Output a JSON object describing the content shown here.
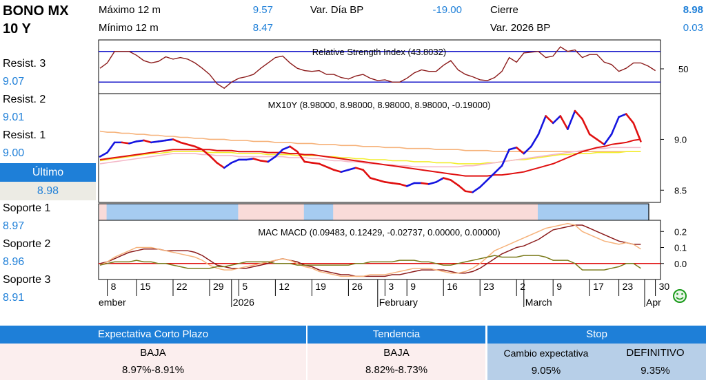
{
  "header": {
    "title_line1": "BONO MX",
    "title_line2": "10 Y",
    "max12_label": "Máximo 12 m",
    "max12_value": "9.57",
    "min12_label": "Mínimo 12 m",
    "min12_value": "8.47",
    "var_dia_label": "Var. Día BP",
    "var_dia_value": "-19.00",
    "cierre_label": "Cierre",
    "cierre_value": "8.98",
    "var_2026_label": "Var. 2026 BP",
    "var_2026_value": "0.03"
  },
  "levels": {
    "r3_label": "Resist. 3",
    "r3_value": "9.07",
    "r2_label": "Resist. 2",
    "r2_value": "9.01",
    "r1_label": "Resist. 1",
    "r1_value": "9.00",
    "ultimo_label": "Último",
    "ultimo_value": "8.98",
    "s1_label": "Soporte 1",
    "s1_value": "8.97",
    "s2_label": "Soporte 2",
    "s2_value": "8.96",
    "s3_label": "Soporte 3",
    "s3_value": "8.91"
  },
  "colors": {
    "accent": "#1e7fd8",
    "price_up": "#1515e0",
    "price_down": "#e01010",
    "rsi_line": "#8b1a1a",
    "band_blue": "#a6ccf1",
    "band_pink": "#f9dbd9",
    "ma_orange": "#f6b27a",
    "ma_yellow": "#f2ee2e",
    "ma_pink": "#f4b8c8",
    "ma_red": "#e01010"
  },
  "chart_data": [
    {
      "type": "line",
      "title": "Relative Strength Index (43.8032)",
      "ylim": [
        15,
        85
      ],
      "y_ticks": [
        "50"
      ],
      "reference_lines": [
        70,
        30
      ],
      "series": [
        {
          "values": [
            48,
            55,
            70,
            70,
            70,
            65,
            58,
            55,
            57,
            63,
            60,
            62,
            60,
            55,
            48,
            40,
            28,
            22,
            30,
            35,
            37,
            40,
            48,
            55,
            62,
            64,
            55,
            48,
            45,
            44,
            45,
            40,
            40,
            36,
            34,
            38,
            40,
            35,
            32,
            33,
            30,
            30,
            35,
            42,
            46,
            44,
            44,
            52,
            58,
            46,
            40,
            37,
            33,
            32,
            36,
            44,
            62,
            56,
            68,
            69,
            70,
            62,
            64,
            76,
            70,
            72,
            62,
            66,
            66,
            56,
            53,
            44,
            48,
            55,
            55,
            51,
            45
          ]
        }
      ]
    },
    {
      "type": "line",
      "title": "MX10Y (8.98000, 8.98000, 8.98000, 8.98000, -0.19000)",
      "ylim": [
        8.38,
        9.45
      ],
      "y_ticks": [
        "9.0",
        "8.5"
      ],
      "series": [
        {
          "values": [
            8.83,
            8.87,
            8.97,
            8.97,
            8.96,
            8.98,
            8.99,
            8.97,
            8.98,
            8.99,
            9.0,
            8.97,
            8.95,
            8.93,
            8.9,
            8.84,
            8.77,
            8.72,
            8.77,
            8.8,
            8.8,
            8.81,
            8.79,
            8.78,
            8.83,
            8.9,
            8.93,
            8.88,
            8.78,
            8.77,
            8.76,
            8.73,
            8.7,
            8.68,
            8.7,
            8.72,
            8.7,
            8.62,
            8.6,
            8.58,
            8.57,
            8.56,
            8.54,
            8.57,
            8.57,
            8.56,
            8.58,
            8.62,
            8.6,
            8.55,
            8.49,
            8.48,
            8.53,
            8.6,
            8.67,
            8.74,
            8.9,
            8.92,
            8.86,
            8.93,
            9.05,
            9.23,
            9.16,
            9.23,
            9.1,
            9.28,
            9.2,
            9.05,
            9.0,
            8.95,
            9.05,
            9.22,
            9.25,
            9.16,
            8.98
          ]
        },
        {
          "values": [
            9.08,
            9.07,
            9.07,
            9.06,
            9.06,
            9.05,
            9.05,
            9.04,
            9.04,
            9.03,
            9.03,
            9.02,
            9.02,
            9.01,
            9.01,
            9.0,
            9.0,
            9.0,
            8.99,
            8.99,
            8.99,
            8.98,
            8.98,
            8.98,
            8.97,
            8.97,
            8.97,
            8.96,
            8.96,
            8.96,
            8.95,
            8.95,
            8.95,
            8.94,
            8.94,
            8.94,
            8.93,
            8.93,
            8.93,
            8.92,
            8.92,
            8.92,
            8.91,
            8.91,
            8.91,
            8.91,
            8.9,
            8.9,
            8.9,
            8.9,
            8.89,
            8.89,
            8.89,
            8.89,
            8.88,
            8.88,
            8.88,
            8.88,
            8.88,
            8.88,
            8.88,
            8.88,
            8.88,
            8.88,
            8.88,
            8.88,
            8.88,
            8.88,
            8.88,
            8.88,
            8.88,
            8.88,
            8.88,
            8.88,
            8.88
          ]
        },
        {
          "values": [
            8.79,
            8.8,
            8.81,
            8.82,
            8.83,
            8.84,
            8.85,
            8.86,
            8.86,
            8.87,
            8.88,
            8.88,
            8.88,
            8.88,
            8.88,
            8.87,
            8.87,
            8.87,
            8.87,
            8.86,
            8.86,
            8.86,
            8.86,
            8.85,
            8.85,
            8.85,
            8.85,
            8.84,
            8.84,
            8.84,
            8.84,
            8.83,
            8.83,
            8.82,
            8.82,
            8.81,
            8.81,
            8.8,
            8.8,
            8.8,
            8.79,
            8.79,
            8.79,
            8.78,
            8.78,
            8.78,
            8.77,
            8.77,
            8.77,
            8.76,
            8.76,
            8.76,
            8.76,
            8.77,
            8.77,
            8.78,
            8.79,
            8.8,
            8.8,
            8.81,
            8.82,
            8.83,
            8.84,
            8.85,
            8.85,
            8.86,
            8.86,
            8.86,
            8.87,
            8.87,
            8.87,
            8.87,
            8.88,
            8.88,
            8.88
          ]
        },
        {
          "values": [
            8.76,
            8.77,
            8.78,
            8.79,
            8.8,
            8.81,
            8.82,
            8.83,
            8.84,
            8.85,
            8.86,
            8.86,
            8.86,
            8.86,
            8.85,
            8.85,
            8.84,
            8.84,
            8.84,
            8.83,
            8.83,
            8.83,
            8.83,
            8.83,
            8.83,
            8.83,
            8.82,
            8.82,
            8.82,
            8.81,
            8.81,
            8.8,
            8.79,
            8.79,
            8.78,
            8.78,
            8.77,
            8.76,
            8.76,
            8.75,
            8.75,
            8.74,
            8.74,
            8.73,
            8.73,
            8.73,
            8.73,
            8.73,
            8.73,
            8.73,
            8.74,
            8.74,
            8.75,
            8.76,
            8.77,
            8.78,
            8.79,
            8.8,
            8.81,
            8.82,
            8.83,
            8.84,
            8.85,
            8.86,
            8.87,
            8.88,
            8.89,
            8.9,
            8.91,
            8.91,
            8.92,
            8.92,
            8.92,
            8.92,
            8.92
          ]
        },
        {
          "values": [
            8.8,
            8.81,
            8.82,
            8.83,
            8.84,
            8.85,
            8.86,
            8.87,
            8.88,
            8.89,
            8.9,
            8.9,
            8.9,
            8.9,
            8.9,
            8.9,
            8.89,
            8.89,
            8.89,
            8.88,
            8.88,
            8.88,
            8.88,
            8.87,
            8.87,
            8.87,
            8.86,
            8.86,
            8.85,
            8.85,
            8.84,
            8.83,
            8.82,
            8.81,
            8.8,
            8.79,
            8.78,
            8.77,
            8.76,
            8.75,
            8.74,
            8.73,
            8.72,
            8.71,
            8.7,
            8.69,
            8.68,
            8.67,
            8.66,
            8.65,
            8.64,
            8.64,
            8.64,
            8.64,
            8.65,
            8.65,
            8.66,
            8.67,
            8.68,
            8.7,
            8.72,
            8.74,
            8.76,
            8.79,
            8.82,
            8.85,
            8.88,
            8.9,
            8.92,
            8.93,
            8.95,
            8.96,
            8.97,
            8.99,
            9.0
          ]
        }
      ]
    },
    {
      "type": "line",
      "title": "MAC MACD (0.09483, 0.12429, -0.02737, 0.00000, 0.00000)",
      "ylim": [
        -0.1,
        0.27
      ],
      "y_ticks": [
        "0.2",
        "0.1",
        "0.0"
      ],
      "reference_lines": [
        0
      ],
      "series": [
        {
          "values": [
            0.0,
            0.01,
            0.03,
            0.05,
            0.07,
            0.08,
            0.09,
            0.09,
            0.09,
            0.08,
            0.08,
            0.08,
            0.08,
            0.07,
            0.05,
            0.02,
            -0.01,
            -0.02,
            -0.03,
            -0.03,
            -0.03,
            -0.02,
            -0.01,
            0.0,
            0.02,
            0.03,
            0.02,
            0.01,
            -0.01,
            -0.02,
            -0.04,
            -0.05,
            -0.06,
            -0.07,
            -0.07,
            -0.08,
            -0.08,
            -0.08,
            -0.08,
            -0.08,
            -0.07,
            -0.07,
            -0.06,
            -0.05,
            -0.04,
            -0.04,
            -0.04,
            -0.04,
            -0.05,
            -0.06,
            -0.06,
            -0.05,
            -0.03,
            0.0,
            0.03,
            0.06,
            0.08,
            0.1,
            0.11,
            0.13,
            0.15,
            0.18,
            0.21,
            0.22,
            0.23,
            0.24,
            0.24,
            0.22,
            0.2,
            0.18,
            0.16,
            0.14,
            0.13,
            0.12,
            0.12
          ]
        },
        {
          "values": [
            -0.01,
            0.01,
            0.04,
            0.06,
            0.08,
            0.1,
            0.1,
            0.1,
            0.09,
            0.08,
            0.07,
            0.06,
            0.05,
            0.04,
            0.02,
            -0.01,
            -0.03,
            -0.04,
            -0.04,
            -0.03,
            -0.02,
            -0.01,
            0.0,
            0.01,
            0.02,
            0.03,
            0.02,
            0.0,
            -0.02,
            -0.03,
            -0.05,
            -0.06,
            -0.07,
            -0.08,
            -0.08,
            -0.08,
            -0.08,
            -0.07,
            -0.07,
            -0.07,
            -0.06,
            -0.05,
            -0.04,
            -0.03,
            -0.03,
            -0.03,
            -0.04,
            -0.05,
            -0.06,
            -0.06,
            -0.05,
            -0.03,
            0.0,
            0.04,
            0.08,
            0.1,
            0.12,
            0.14,
            0.16,
            0.18,
            0.2,
            0.22,
            0.23,
            0.24,
            0.25,
            0.24,
            0.2,
            0.18,
            0.16,
            0.14,
            0.13,
            0.12,
            0.13,
            0.12,
            0.09
          ]
        },
        {
          "values": [
            -0.01,
            0.0,
            0.01,
            0.01,
            0.01,
            0.02,
            0.01,
            0.01,
            0.0,
            0.0,
            -0.01,
            -0.02,
            -0.03,
            -0.03,
            -0.03,
            -0.03,
            -0.02,
            -0.02,
            -0.01,
            0.0,
            0.01,
            0.01,
            0.01,
            0.01,
            0.0,
            0.0,
            0.0,
            -0.01,
            -0.01,
            -0.01,
            -0.01,
            -0.01,
            -0.01,
            -0.01,
            -0.01,
            0.0,
            0.0,
            0.01,
            0.01,
            0.01,
            0.01,
            0.02,
            0.02,
            0.02,
            0.01,
            0.01,
            0.0,
            -0.01,
            -0.01,
            0.0,
            0.01,
            0.02,
            0.03,
            0.04,
            0.05,
            0.04,
            0.04,
            0.04,
            0.05,
            0.05,
            0.05,
            0.04,
            0.02,
            0.02,
            0.02,
            0.0,
            -0.04,
            -0.04,
            -0.04,
            -0.04,
            -0.03,
            -0.02,
            0.0,
            0.0,
            -0.03
          ]
        }
      ]
    },
    {
      "type": "bar",
      "title": "",
      "bands": [
        {
          "start": 0,
          "end": 1,
          "state": "pink"
        },
        {
          "start": 1,
          "end": 19,
          "state": "blue"
        },
        {
          "start": 19,
          "end": 28,
          "state": "pink"
        },
        {
          "start": 28,
          "end": 32,
          "state": "blue"
        },
        {
          "start": 32,
          "end": 60,
          "state": "pink"
        },
        {
          "start": 60,
          "end": 78,
          "state": "blue"
        }
      ]
    }
  ],
  "x_axis": {
    "days": [
      "8",
      "15",
      "22",
      "29",
      "5",
      "12",
      "19",
      "26",
      "3",
      "9",
      "16",
      "23",
      "2",
      "9",
      "17",
      "23",
      "30"
    ],
    "day_index": [
      1,
      5,
      10,
      15,
      19,
      24,
      29,
      34,
      39,
      42,
      47,
      52,
      57,
      62,
      67,
      71,
      76
    ],
    "months": [
      "ember",
      "2026",
      "February",
      "March",
      "Apr"
    ],
    "month_index": [
      0,
      18,
      38,
      58,
      79
    ]
  },
  "bottom_table": {
    "corto_header": "Expectativa Corto Plazo",
    "corto_direction": "BAJA",
    "corto_range": "8.97%-8.91%",
    "tendencia_header": "Tendencia",
    "tendencia_direction": "BAJA",
    "tendencia_range": "8.82%-8.73%",
    "stop_header": "Stop",
    "stop_cambio_label": "Cambio expectativa",
    "stop_cambio_value": "9.05%",
    "stop_definitivo_label": "DEFINITIVO",
    "stop_definitivo_value": "9.35%"
  }
}
